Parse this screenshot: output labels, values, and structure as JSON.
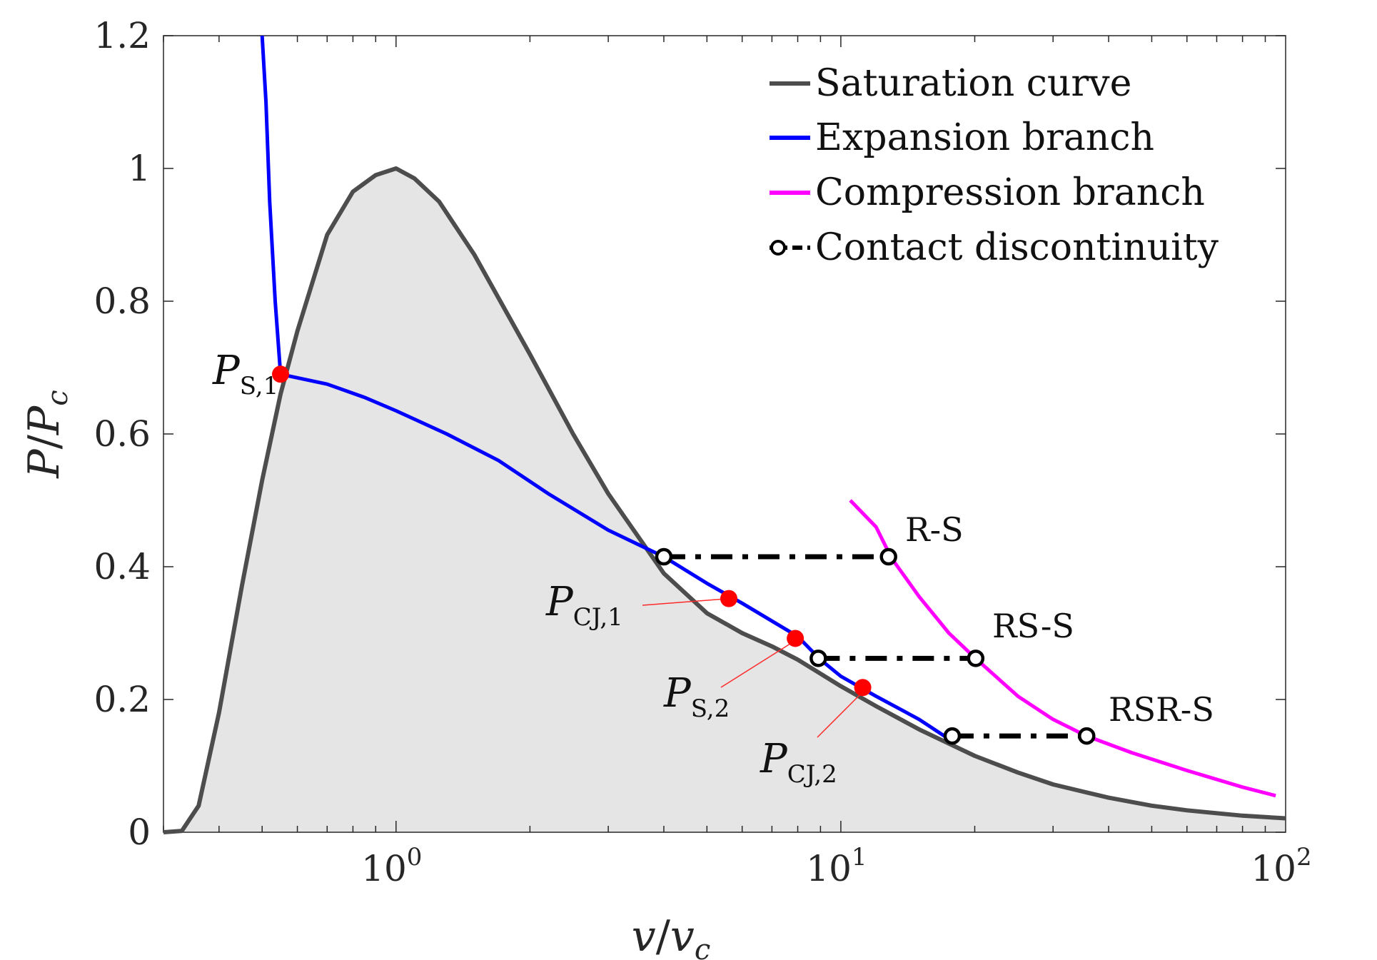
{
  "chart_data": {
    "type": "line",
    "xscale": "log",
    "xlim": [
      0.3,
      100
    ],
    "ylim": [
      0,
      1.2
    ],
    "xlabel": "v/v_c",
    "ylabel": "P/P_c",
    "xlabel_parts": [
      "v",
      "/",
      "v",
      "c"
    ],
    "ylabel_parts": [
      "P",
      "/",
      "P",
      "c"
    ],
    "x_ticks": [
      {
        "value": 1,
        "base": "10",
        "exp": "0"
      },
      {
        "value": 10,
        "base": "10",
        "exp": "1"
      },
      {
        "value": 100,
        "base": "10",
        "exp": "2"
      }
    ],
    "y_ticks": [
      {
        "value": 0,
        "label": "0"
      },
      {
        "value": 0.2,
        "label": "0.2"
      },
      {
        "value": 0.4,
        "label": "0.4"
      },
      {
        "value": 0.6,
        "label": "0.6"
      },
      {
        "value": 0.8,
        "label": "0.8"
      },
      {
        "value": 1,
        "label": "1"
      },
      {
        "value": 1.2,
        "label": "1.2"
      }
    ],
    "legend_position": "top-right",
    "series": [
      {
        "name": "Saturation curve",
        "color": "#4d4d4d",
        "fill": "#e5e5e5",
        "x": [
          0.3,
          0.33,
          0.36,
          0.4,
          0.45,
          0.5,
          0.55,
          0.6,
          0.7,
          0.8,
          0.9,
          1.0,
          1.1,
          1.25,
          1.5,
          2,
          2.5,
          3,
          4,
          5,
          6,
          7,
          8,
          10,
          12,
          15,
          20,
          25,
          30,
          40,
          50,
          60,
          80,
          100
        ],
        "y": [
          0.0,
          0.002,
          0.04,
          0.18,
          0.37,
          0.53,
          0.66,
          0.755,
          0.9,
          0.965,
          0.99,
          1.0,
          0.985,
          0.95,
          0.87,
          0.72,
          0.6,
          0.51,
          0.39,
          0.33,
          0.3,
          0.28,
          0.26,
          0.22,
          0.19,
          0.155,
          0.115,
          0.09,
          0.072,
          0.052,
          0.04,
          0.033,
          0.025,
          0.021
        ]
      },
      {
        "name": "Expansion branch",
        "color": "#0000ff",
        "x": [
          0.5,
          0.51,
          0.52,
          0.535,
          0.55,
          0.7,
          0.85,
          1.0,
          1.3,
          1.7,
          2.2,
          3,
          4,
          5,
          6,
          8,
          9,
          10,
          12,
          15,
          18
        ],
        "y": [
          1.2,
          1.1,
          0.95,
          0.8,
          0.69,
          0.675,
          0.655,
          0.635,
          0.6,
          0.56,
          0.51,
          0.455,
          0.415,
          0.375,
          0.345,
          0.295,
          0.26,
          0.235,
          0.205,
          0.17,
          0.135
        ]
      },
      {
        "name": "Compression branch",
        "color": "#ff00ff",
        "x": [
          10.5,
          12,
          13,
          15,
          17.5,
          20,
          25,
          30,
          35.7,
          45,
          60,
          80,
          95
        ],
        "y": [
          0.5,
          0.46,
          0.413,
          0.355,
          0.3,
          0.263,
          0.205,
          0.17,
          0.145,
          0.12,
          0.093,
          0.068,
          0.055
        ]
      },
      {
        "name": "Contact discontinuity",
        "color": "#000000",
        "segments": [
          {
            "x": [
              4.0,
              12.8
            ],
            "y": [
              0.415,
              0.415
            ]
          },
          {
            "x": [
              8.9,
              20.1
            ],
            "y": [
              0.262,
              0.262
            ]
          },
          {
            "x": [
              17.8,
              35.7
            ],
            "y": [
              0.145,
              0.145
            ]
          }
        ]
      }
    ],
    "points": [
      {
        "label": "P",
        "sub": "S,1",
        "x": 0.55,
        "y": 0.69
      },
      {
        "label": "P",
        "sub": "CJ,1",
        "x": 5.6,
        "y": 0.352
      },
      {
        "label": "P",
        "sub": "S,2",
        "x": 7.9,
        "y": 0.292
      },
      {
        "label": "P",
        "sub": "CJ,2",
        "x": 11.2,
        "y": 0.218
      }
    ],
    "annotations": [
      {
        "text": "R-S",
        "x": 12.8,
        "y": 0.415
      },
      {
        "text": "RS-S",
        "x": 20.1,
        "y": 0.262
      },
      {
        "text": "RSR-S",
        "x": 35.7,
        "y": 0.145
      }
    ],
    "legend": [
      {
        "label": "Saturation curve",
        "color": "#4d4d4d",
        "style": "solid"
      },
      {
        "label": "Expansion branch",
        "color": "#0000ff",
        "style": "solid"
      },
      {
        "label": "Compression branch",
        "color": "#ff00ff",
        "style": "solid"
      },
      {
        "label": "Contact discontinuity",
        "color": "#000000",
        "style": "dashdot-circle"
      }
    ]
  }
}
